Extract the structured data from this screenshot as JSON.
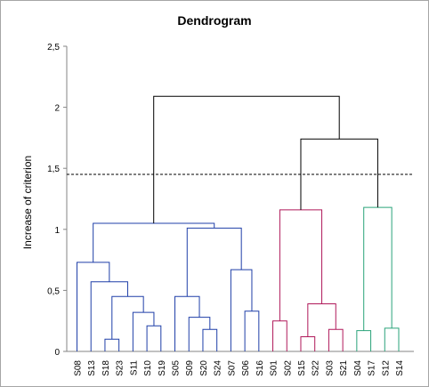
{
  "chart_data": {
    "type": "dendrogram",
    "title": "Dendrogram",
    "ylabel": "Increase of criterion",
    "xlabel": "",
    "ylim": [
      0,
      2.5
    ],
    "yticks": [
      "0",
      "0,5",
      "1",
      "1,5",
      "2",
      "2,5"
    ],
    "ytick_values": [
      0,
      0.5,
      1,
      1.5,
      2,
      2.5
    ],
    "leaves": [
      "S08",
      "S13",
      "S18",
      "S23",
      "S11",
      "S10",
      "S19",
      "S05",
      "S09",
      "S20",
      "S24",
      "S07",
      "S06",
      "S16",
      "S01",
      "S02",
      "S15",
      "S22",
      "S03",
      "S21",
      "S04",
      "S17",
      "S12",
      "S14"
    ],
    "cut_line": 1.45,
    "merges": [
      {
        "a": "S18",
        "b": "S23",
        "height": 0.1,
        "color": "#1f3fa8"
      },
      {
        "a": "S10",
        "b": "S19",
        "height": 0.21,
        "color": "#1f3fa8"
      },
      {
        "a": "S11",
        "b": [
          "S10",
          "S19"
        ],
        "height": 0.32,
        "color": "#1f3fa8"
      },
      {
        "a": [
          "S18",
          "S23"
        ],
        "b": [
          "S11",
          "S10",
          "S19"
        ],
        "height": 0.45,
        "color": "#1f3fa8"
      },
      {
        "a": "S13",
        "b": [
          "S18",
          "S23",
          "S11",
          "S10",
          "S19"
        ],
        "height": 0.57,
        "color": "#1f3fa8"
      },
      {
        "a": "S08",
        "b": [
          "S13",
          "S18",
          "S23",
          "S11",
          "S10",
          "S19"
        ],
        "height": 0.73,
        "color": "#1f3fa8"
      },
      {
        "a": "S20",
        "b": "S24",
        "height": 0.18,
        "color": "#1f3fa8"
      },
      {
        "a": "S09",
        "b": [
          "S20",
          "S24"
        ],
        "height": 0.28,
        "color": "#1f3fa8"
      },
      {
        "a": "S05",
        "b": [
          "S09",
          "S20",
          "S24"
        ],
        "height": 0.45,
        "color": "#1f3fa8"
      },
      {
        "a": "S06",
        "b": "S16",
        "height": 0.33,
        "color": "#1f3fa8"
      },
      {
        "a": "S07",
        "b": [
          "S06",
          "S16"
        ],
        "height": 0.67,
        "color": "#1f3fa8"
      },
      {
        "a": [
          "S05",
          "S09",
          "S20",
          "S24"
        ],
        "b": [
          "S07",
          "S06",
          "S16"
        ],
        "height": 1.01,
        "color": "#1f3fa8"
      },
      {
        "a": [
          "S08",
          "S13",
          "S18",
          "S23",
          "S11",
          "S10",
          "S19"
        ],
        "b": [
          "S05",
          "S09",
          "S20",
          "S24",
          "S07",
          "S06",
          "S16"
        ],
        "height": 1.05,
        "color": "#1f3fa8"
      },
      {
        "a": "S15",
        "b": "S22",
        "height": 0.12,
        "color": "#b0195a"
      },
      {
        "a": "S03",
        "b": "S21",
        "height": 0.18,
        "color": "#b0195a"
      },
      {
        "a": [
          "S15",
          "S22"
        ],
        "b": [
          "S03",
          "S21"
        ],
        "height": 0.39,
        "color": "#b0195a"
      },
      {
        "a": "S01",
        "b": "S02",
        "height": 0.25,
        "color": "#b0195a"
      },
      {
        "a": [
          "S01",
          "S02"
        ],
        "b": [
          "S15",
          "S22",
          "S03",
          "S21"
        ],
        "height": 1.16,
        "color": "#b0195a"
      },
      {
        "a": "S04",
        "b": "S17",
        "height": 0.17,
        "color": "#2aa37a"
      },
      {
        "a": "S12",
        "b": "S14",
        "height": 0.19,
        "color": "#2aa37a"
      },
      {
        "a": [
          "S04",
          "S17"
        ],
        "b": [
          "S12",
          "S14"
        ],
        "height": 1.18,
        "color": "#2aa37a"
      },
      {
        "a": [
          "S01",
          "S02",
          "S15",
          "S22",
          "S03",
          "S21"
        ],
        "b": [
          "S04",
          "S17",
          "S12",
          "S14"
        ],
        "height": 1.74,
        "color": "#000000"
      },
      {
        "a": [
          "S08",
          "S13",
          "S18",
          "S23",
          "S11",
          "S10",
          "S19",
          "S05",
          "S09",
          "S20",
          "S24",
          "S07",
          "S06",
          "S16"
        ],
        "b": [
          "S01",
          "S02",
          "S15",
          "S22",
          "S03",
          "S21",
          "S04",
          "S17",
          "S12",
          "S14"
        ],
        "height": 2.09,
        "color": "#000000"
      }
    ]
  }
}
